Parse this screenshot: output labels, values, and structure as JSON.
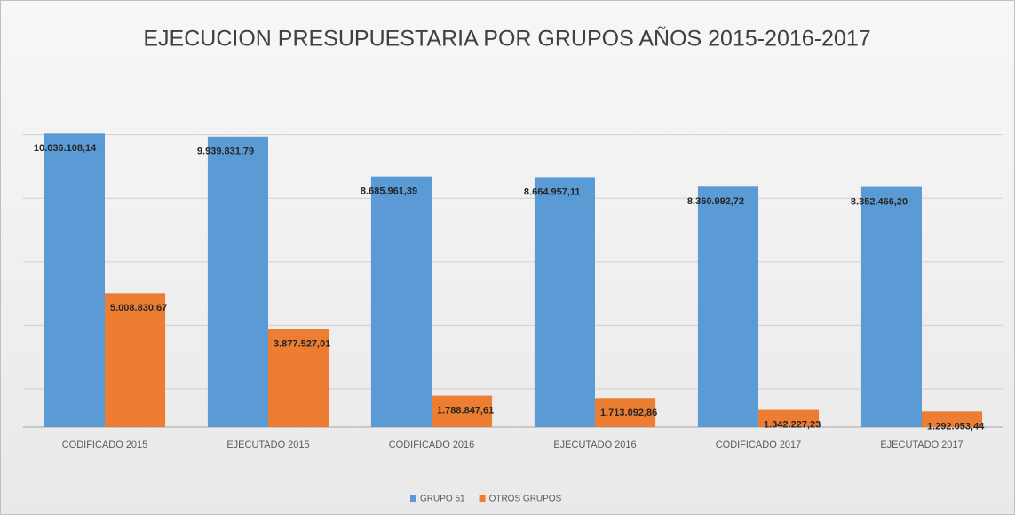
{
  "chart_data": {
    "type": "bar",
    "title": "EJECUCION PRESUPUESTARIA POR GRUPOS  AÑOS 2015-2016-2017",
    "categories": [
      "CODIFICADO 2015",
      "EJECUTADO 2015",
      "CODIFICADO 2016",
      "EJECUTADO 2016",
      "CODIFICADO 2017",
      "EJECUTADO 2017"
    ],
    "series": [
      {
        "name": "GRUPO 51",
        "color": "#5b9bd5",
        "values": [
          10036108.14,
          9939831.79,
          8685961.39,
          8664957.11,
          8360992.72,
          8352466.2
        ],
        "value_labels": [
          "10.036.108,14",
          "9.939.831,79",
          "8.685.961,39",
          "8.664.957,11",
          "8.360.992,72",
          "8.352.466,20"
        ]
      },
      {
        "name": "OTROS GRUPOS",
        "color": "#ed7d31",
        "values": [
          5008830.67,
          3877527.01,
          1788847.61,
          1713092.86,
          1342227.23,
          1292053.44
        ],
        "value_labels": [
          "5.008.830,67",
          "3.877.527,01",
          "1.788.847,61",
          "1.713.092,86",
          "1.342.227,23",
          "1.292.053,44"
        ]
      }
    ],
    "ylim": [
      800000,
      12000000
    ],
    "yticks": [
      2000000,
      4000000,
      6000000,
      8000000,
      10000000
    ],
    "ytick_labels": false,
    "grid": true,
    "legend": "bottom"
  }
}
